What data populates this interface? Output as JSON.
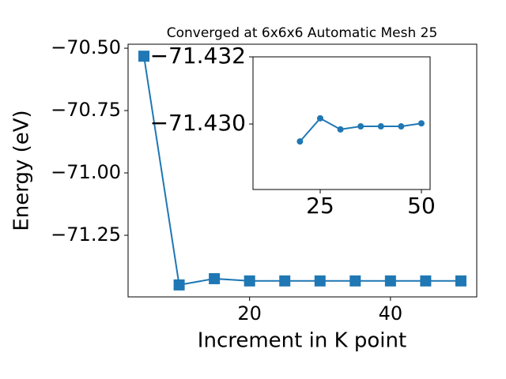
{
  "chart_data": [
    {
      "type": "line",
      "title": "Converged at 6x6x6 Automatic Mesh 25",
      "x_label": "Increment in K point",
      "y_label": "Energy (eV)",
      "x": [
        5,
        10,
        15,
        20,
        25,
        30,
        35,
        40,
        45,
        50
      ],
      "series": [
        {
          "color": "#1f77b4",
          "marker": "square",
          "values": [
            -70.532,
            -71.449,
            -71.424,
            -71.433,
            -71.433,
            -71.433,
            -71.433,
            -71.433,
            -71.433,
            -71.433
          ]
        }
      ],
      "xlim": [
        2.75,
        52.25
      ],
      "ylim": [
        -71.497,
        -70.484
      ],
      "xticks": [
        20,
        40
      ],
      "yticks": [
        {
          "value": -70.5,
          "label": "−70.50"
        },
        {
          "value": -70.75,
          "label": "−70.75"
        },
        {
          "value": -71.0,
          "label": "−71.00"
        },
        {
          "value": -71.25,
          "label": "−71.25"
        }
      ]
    },
    {
      "type": "line",
      "x": [
        20,
        25,
        30,
        35,
        40,
        45,
        50
      ],
      "series": [
        {
          "color": "#1f77b4",
          "marker": "circle",
          "values": [
            -71.42948,
            -71.43017,
            -71.42984,
            -71.42993,
            -71.42993,
            -71.42993,
            -71.43002
          ]
        }
      ],
      "xlim": [
        8.4,
        52.15
      ],
      "ylim": [
        -71.42805,
        -71.432
      ],
      "xticks": [
        25,
        50
      ],
      "yticks": [
        {
          "value": -71.432,
          "label": "−71.432"
        },
        {
          "value": -71.43,
          "label": "−71.430"
        }
      ]
    }
  ]
}
